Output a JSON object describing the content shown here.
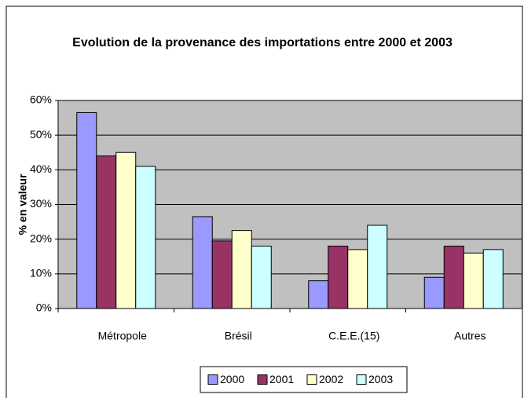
{
  "chart_data": {
    "type": "bar",
    "title": "Evolution de la provenance des importations entre 2000 et 2003",
    "y_label": "% en valeur",
    "categories": [
      "Métropole",
      "Brésil",
      "C.E.E.(15)",
      "Autres"
    ],
    "series": [
      {
        "name": "2000",
        "color": "#9999ff",
        "values": [
          56.5,
          26.5,
          8,
          9
        ]
      },
      {
        "name": "2001",
        "color": "#993366",
        "values": [
          44,
          19.5,
          18,
          18
        ]
      },
      {
        "name": "2002",
        "color": "#ffffcc",
        "values": [
          45,
          22.5,
          17,
          16
        ]
      },
      {
        "name": "2003",
        "color": "#ccffff",
        "values": [
          41,
          18,
          24,
          17
        ]
      }
    ],
    "ylim": [
      0,
      60
    ],
    "yticks": [
      {
        "value": 0,
        "label": "0%"
      },
      {
        "value": 10,
        "label": "10%"
      },
      {
        "value": 20,
        "label": "20%"
      },
      {
        "value": 30,
        "label": "30%"
      },
      {
        "value": 40,
        "label": "40%"
      },
      {
        "value": 50,
        "label": "50%"
      },
      {
        "value": 60,
        "label": "60%"
      }
    ],
    "grid": true,
    "legend": "bottom",
    "plot_color": "#c0c0c0"
  }
}
